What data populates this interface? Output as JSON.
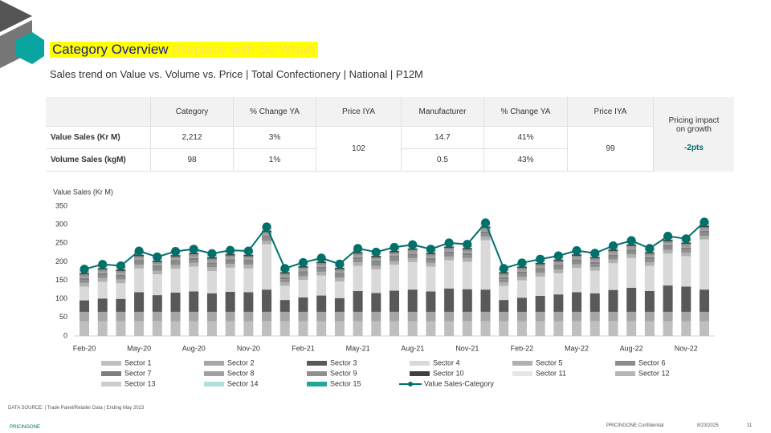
{
  "header": {
    "title": "Category Overview",
    "title_note": "(Replace with So What)",
    "subtitle": "Sales trend on Value vs. Volume vs. Price | Total Confectionery | National | P12M"
  },
  "table": {
    "header": [
      "Category",
      "% Change YA",
      "Price IYA",
      "Manufacturer",
      "% Change YA",
      "Price IYA"
    ],
    "rows": [
      [
        "Value Sales (Kr M)",
        "2,212",
        "3%",
        "14.7",
        "41%"
      ],
      [
        "Volume Sales (kgM)",
        "98",
        "1%",
        "0.5",
        "43%"
      ]
    ],
    "category_price_iya": "102",
    "manufacturer_price_iya": "99",
    "pricing_impact_label": "Pricing impact on growth",
    "pricing_impact_value": "-2pts"
  },
  "chart_data": {
    "type": "bar",
    "stacked": true,
    "y_label": "Value Sales (Kr M)",
    "categories": [
      "Feb-20",
      null,
      null,
      "May-20",
      null,
      null,
      "Aug-20",
      null,
      null,
      "Nov-20",
      null,
      null,
      "Feb-21",
      null,
      null,
      "May-21",
      null,
      null,
      "Aug-21",
      null,
      null,
      "Nov-21",
      null,
      null,
      "Feb-22",
      null,
      null,
      "May-22",
      null,
      null,
      "Aug-22",
      null,
      null,
      "Nov-22",
      null
    ],
    "ylim": [
      0,
      350
    ],
    "yticks": [
      0,
      50,
      100,
      150,
      200,
      250,
      300,
      350
    ],
    "series": [
      {
        "name": "Sector 1",
        "color": "#bfbfbf",
        "values": [
          40,
          40,
          40,
          40,
          40,
          40,
          40,
          40,
          40,
          40,
          40,
          40,
          40,
          40,
          40,
          40,
          40,
          40,
          40,
          40,
          40,
          40,
          40,
          40,
          40,
          40,
          40,
          40,
          40,
          40,
          40,
          40,
          40,
          40,
          40
        ]
      },
      {
        "name": "Sector 2",
        "color": "#a6a6a6",
        "values": [
          25,
          25,
          25,
          25,
          25,
          25,
          25,
          25,
          25,
          25,
          25,
          25,
          25,
          25,
          25,
          25,
          25,
          25,
          25,
          25,
          25,
          25,
          25,
          25,
          25,
          25,
          25,
          25,
          25,
          25,
          25,
          25,
          25,
          25,
          25
        ]
      },
      {
        "name": "Sector 3",
        "color": "#595959",
        "values": [
          31,
          36,
          35,
          53,
          45,
          52,
          55,
          50,
          54,
          53,
          60,
          32,
          39,
          44,
          37,
          56,
          51,
          57,
          60,
          55,
          63,
          61,
          60,
          32,
          38,
          43,
          47,
          53,
          50,
          59,
          65,
          56,
          71,
          68,
          60
        ]
      },
      {
        "name": "Sector 4",
        "color": "#d9d9d9",
        "values": [
          37,
          45,
          42,
          64,
          56,
          64,
          67,
          60,
          65,
          64,
          122,
          38,
          47,
          54,
          45,
          68,
          63,
          70,
          74,
          67,
          76,
          74,
          133,
          38,
          47,
          52,
          57,
          65,
          61,
          72,
          80,
          68,
          86,
          82,
          135
        ]
      },
      {
        "name": "Sector 5",
        "color": "#b0b0b0",
        "values": [
          10,
          10,
          10,
          10,
          10,
          10,
          10,
          10,
          10,
          10,
          10,
          10,
          10,
          10,
          10,
          10,
          10,
          10,
          10,
          10,
          10,
          10,
          10,
          10,
          10,
          10,
          10,
          10,
          10,
          10,
          10,
          10,
          10,
          10,
          10
        ]
      },
      {
        "name": "Sector 6",
        "color": "#8c8c8c",
        "values": [
          8,
          8,
          8,
          8,
          8,
          8,
          8,
          8,
          8,
          8,
          8,
          8,
          8,
          8,
          8,
          8,
          8,
          8,
          8,
          8,
          8,
          8,
          8,
          8,
          8,
          8,
          8,
          8,
          8,
          8,
          8,
          8,
          8,
          8,
          8
        ]
      },
      {
        "name": "Sector 7",
        "color": "#7f7f7f",
        "values": [
          5,
          5,
          5,
          5,
          5,
          5,
          5,
          5,
          5,
          5,
          5,
          5,
          5,
          5,
          5,
          5,
          5,
          5,
          5,
          5,
          5,
          5,
          5,
          5,
          5,
          5,
          5,
          5,
          5,
          5,
          5,
          5,
          5,
          5,
          5
        ]
      },
      {
        "name": "Sector 8",
        "color": "#a0a0a0",
        "values": [
          5,
          5,
          5,
          5,
          5,
          5,
          5,
          5,
          5,
          5,
          5,
          5,
          5,
          5,
          5,
          5,
          5,
          5,
          5,
          5,
          5,
          5,
          5,
          5,
          5,
          5,
          5,
          5,
          5,
          5,
          5,
          5,
          5,
          5,
          5
        ]
      },
      {
        "name": "Sector 9",
        "color": "#909090",
        "values": [
          5,
          5,
          5,
          5,
          5,
          5,
          5,
          5,
          5,
          5,
          5,
          5,
          5,
          5,
          5,
          5,
          5,
          5,
          5,
          5,
          5,
          5,
          5,
          5,
          5,
          5,
          5,
          5,
          5,
          5,
          5,
          5,
          5,
          5,
          5
        ]
      },
      {
        "name": "Sector 10",
        "color": "#404040",
        "values": [
          4,
          4,
          4,
          4,
          4,
          4,
          4,
          4,
          4,
          4,
          4,
          4,
          4,
          4,
          4,
          4,
          4,
          4,
          4,
          4,
          4,
          4,
          4,
          4,
          4,
          4,
          4,
          4,
          4,
          4,
          4,
          4,
          4,
          4,
          4
        ]
      },
      {
        "name": "Sector 11",
        "color": "#e6e6e6",
        "values": [
          3,
          3,
          3,
          3,
          3,
          3,
          3,
          3,
          3,
          3,
          3,
          3,
          3,
          3,
          3,
          3,
          3,
          3,
          3,
          3,
          3,
          3,
          3,
          3,
          3,
          3,
          3,
          3,
          3,
          3,
          3,
          3,
          3,
          3,
          3
        ]
      },
      {
        "name": "Sector 12",
        "color": "#b5b5b5",
        "values": [
          3,
          3,
          3,
          3,
          3,
          3,
          3,
          3,
          3,
          3,
          3,
          3,
          3,
          3,
          3,
          3,
          3,
          3,
          3,
          3,
          3,
          3,
          3,
          3,
          3,
          3,
          3,
          3,
          3,
          3,
          3,
          3,
          3,
          3,
          3
        ]
      },
      {
        "name": "Sector 13",
        "color": "#cccccc",
        "values": [
          2,
          2,
          2,
          2,
          2,
          2,
          2,
          2,
          2,
          2,
          2,
          2,
          2,
          2,
          2,
          2,
          2,
          2,
          2,
          2,
          2,
          2,
          2,
          2,
          2,
          2,
          2,
          2,
          2,
          2,
          2,
          2,
          2,
          2,
          2
        ]
      },
      {
        "name": "Sector 14",
        "color": "#b2dfdb",
        "values": [
          1,
          1,
          1,
          1,
          1,
          1,
          1,
          1,
          1,
          1,
          1,
          1,
          1,
          1,
          1,
          1,
          1,
          1,
          1,
          1,
          1,
          1,
          1,
          1,
          1,
          1,
          1,
          1,
          1,
          1,
          1,
          1,
          1,
          1,
          1
        ]
      },
      {
        "name": "Sector 15",
        "color": "#26a69a",
        "values": [
          1,
          1,
          1,
          1,
          1,
          1,
          1,
          1,
          1,
          1,
          1,
          1,
          1,
          1,
          1,
          1,
          1,
          1,
          1,
          1,
          1,
          1,
          1,
          1,
          1,
          1,
          1,
          1,
          1,
          1,
          1,
          1,
          1,
          1,
          1
        ]
      },
      {
        "name": "Value Sales-Category",
        "color": "#00706b",
        "type": "line",
        "values": [
          180,
          193,
          189,
          229,
          213,
          228,
          234,
          222,
          231,
          229,
          294,
          182,
          198,
          210,
          194,
          236,
          226,
          239,
          246,
          234,
          251,
          247,
          305,
          182,
          197,
          207,
          216,
          230,
          223,
          243,
          257,
          236,
          269,
          262,
          307
        ]
      }
    ]
  },
  "footer": {
    "source": "DATA SOURCE: | Trade Panel/Retailer Data | Ending May 2023",
    "brand": "PRICINGONE",
    "confidential": "PRICINGONE Confidential",
    "date": "8/23/2025",
    "page": "11"
  }
}
